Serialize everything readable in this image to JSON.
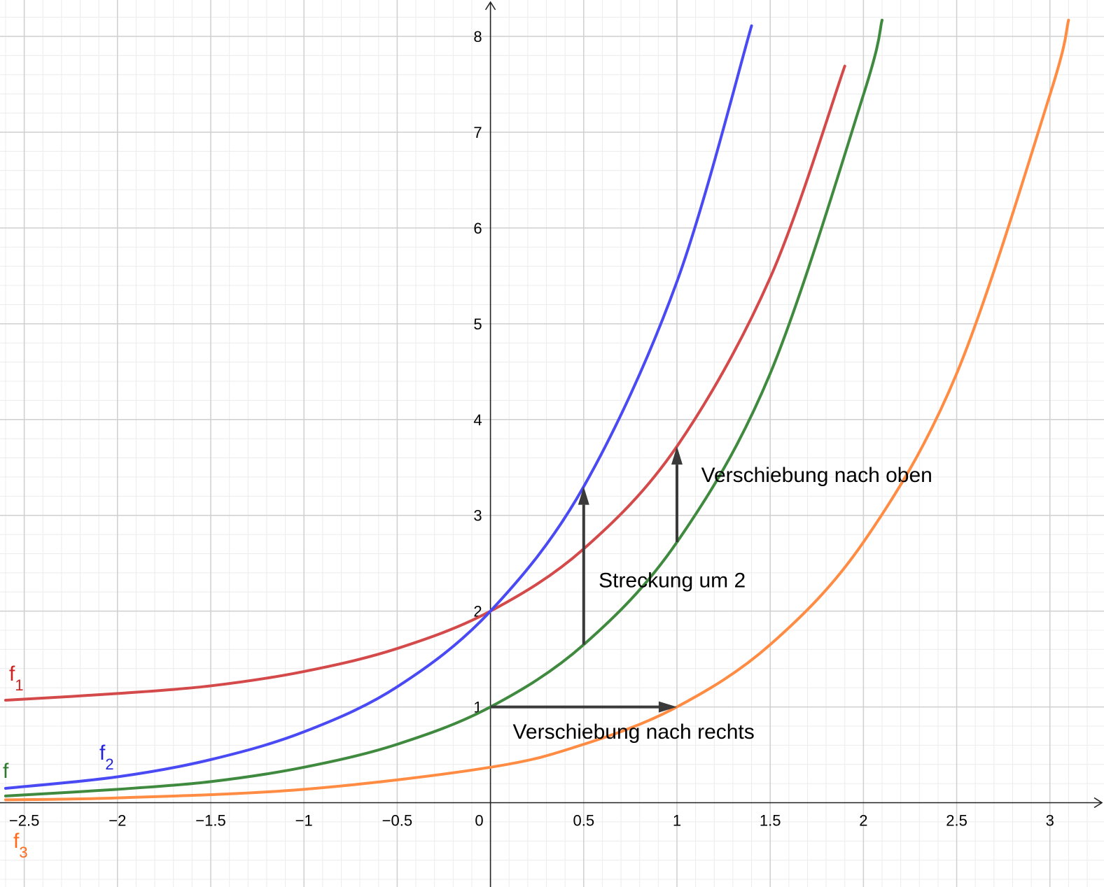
{
  "chart_data": {
    "type": "line",
    "xlim": [
      -2.63,
      3.29
    ],
    "ylim": [
      -0.88,
      8.38
    ],
    "grid": true,
    "x_ticks": [
      -2.5,
      -2,
      -1.5,
      -1,
      -0.5,
      0,
      0.5,
      1,
      1.5,
      2,
      2.5,
      3
    ],
    "x_tick_labels": [
      "−2.5",
      "−2",
      "−1.5",
      "−1",
      "−0.5",
      "0",
      "0.5",
      "1",
      "1.5",
      "2",
      "2.5",
      "3"
    ],
    "y_ticks": [
      1,
      2,
      3,
      4,
      5,
      6,
      7,
      8
    ],
    "y_tick_labels": [
      "1",
      "2",
      "3",
      "4",
      "5",
      "6",
      "7",
      "8"
    ],
    "series": [
      {
        "name": "f",
        "color": "#3f8a3f",
        "x": [
          -2.6,
          -2.0,
          -1.5,
          -1.0,
          -0.5,
          0.0,
          0.5,
          1.0,
          1.5,
          2.0,
          2.1
        ],
        "y": [
          0.07,
          0.14,
          0.22,
          0.37,
          0.61,
          1.0,
          1.65,
          2.72,
          4.48,
          7.39,
          8.17
        ]
      },
      {
        "name": "f1",
        "label": "f",
        "label_sub": "1",
        "color": "#d44a4a",
        "x": [
          -2.6,
          -2.0,
          -1.5,
          -1.0,
          -0.5,
          0.0,
          0.5,
          1.0,
          1.5,
          1.9
        ],
        "y": [
          1.07,
          1.14,
          1.22,
          1.37,
          1.61,
          2.0,
          2.65,
          3.72,
          5.48,
          7.69
        ]
      },
      {
        "name": "f2",
        "label": "f",
        "label_sub": "2",
        "color": "#4a4af5",
        "x": [
          -2.6,
          -2.0,
          -1.5,
          -1.0,
          -0.5,
          0.0,
          0.5,
          1.0,
          1.4
        ],
        "y": [
          0.15,
          0.27,
          0.45,
          0.74,
          1.21,
          2.0,
          3.3,
          5.44,
          8.11
        ]
      },
      {
        "name": "f3",
        "label": "f",
        "label_sub": "3",
        "color": "#ff8c42",
        "x": [
          -2.6,
          -2.0,
          -1.0,
          0.0,
          0.5,
          1.0,
          1.5,
          2.0,
          2.5,
          3.0,
          3.1
        ],
        "y": [
          0.03,
          0.05,
          0.14,
          0.37,
          0.61,
          1.0,
          1.65,
          2.72,
          4.48,
          7.39,
          8.17
        ]
      }
    ],
    "arrows": [
      {
        "from": [
          0.5,
          1.65
        ],
        "to": [
          0.5,
          3.3
        ]
      },
      {
        "from": [
          1.0,
          2.72
        ],
        "to": [
          1.0,
          3.72
        ]
      },
      {
        "from": [
          0.0,
          1.0
        ],
        "to": [
          1.0,
          1.0
        ]
      }
    ],
    "annotations": [
      {
        "text": "Verschiebung nach oben",
        "x": 1.13,
        "y": 3.35
      },
      {
        "text": "Streckung um 2",
        "x": 0.58,
        "y": 2.25
      },
      {
        "text": "Verschiebung nach rechts",
        "x": 0.12,
        "y": 0.67
      }
    ]
  },
  "series_label_colors": {
    "f": "#2f7a2f",
    "f1": "#cc2222",
    "f2": "#2222dd",
    "f3": "#ff6a1a"
  }
}
